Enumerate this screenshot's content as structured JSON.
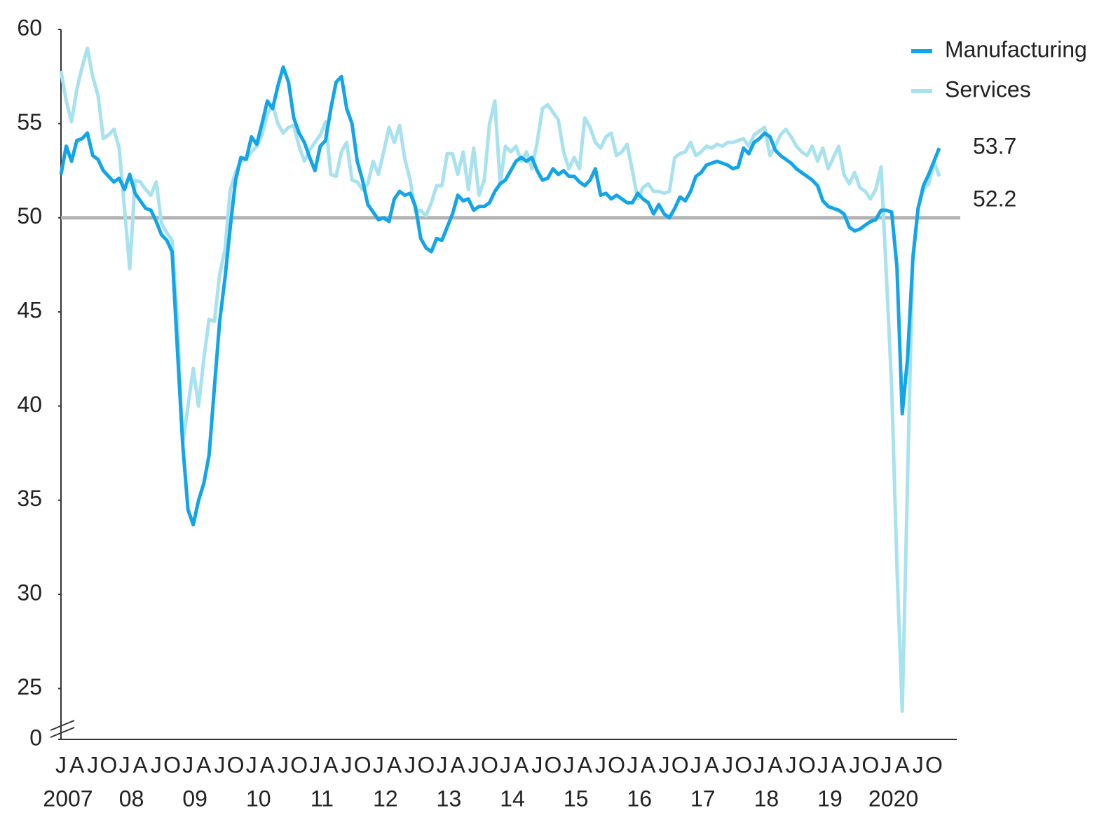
{
  "chart_data": {
    "type": "line",
    "x": [
      "2007-01",
      "2007-02",
      "2007-03",
      "2007-04",
      "2007-05",
      "2007-06",
      "2007-07",
      "2007-08",
      "2007-09",
      "2007-10",
      "2007-11",
      "2007-12",
      "2008-01",
      "2008-02",
      "2008-03",
      "2008-04",
      "2008-05",
      "2008-06",
      "2008-07",
      "2008-08",
      "2008-09",
      "2008-10",
      "2008-11",
      "2008-12",
      "2009-01",
      "2009-02",
      "2009-03",
      "2009-04",
      "2009-05",
      "2009-06",
      "2009-07",
      "2009-08",
      "2009-09",
      "2009-10",
      "2009-11",
      "2009-12",
      "2010-01",
      "2010-02",
      "2010-03",
      "2010-04",
      "2010-05",
      "2010-06",
      "2010-07",
      "2010-08",
      "2010-09",
      "2010-10",
      "2010-11",
      "2010-12",
      "2011-01",
      "2011-02",
      "2011-03",
      "2011-04",
      "2011-05",
      "2011-06",
      "2011-07",
      "2011-08",
      "2011-09",
      "2011-10",
      "2011-11",
      "2011-12",
      "2012-01",
      "2012-02",
      "2012-03",
      "2012-04",
      "2012-05",
      "2012-06",
      "2012-07",
      "2012-08",
      "2012-09",
      "2012-10",
      "2012-11",
      "2012-12",
      "2013-01",
      "2013-02",
      "2013-03",
      "2013-04",
      "2013-05",
      "2013-06",
      "2013-07",
      "2013-08",
      "2013-09",
      "2013-10",
      "2013-11",
      "2013-12",
      "2014-01",
      "2014-02",
      "2014-03",
      "2014-04",
      "2014-05",
      "2014-06",
      "2014-07",
      "2014-08",
      "2014-09",
      "2014-10",
      "2014-11",
      "2014-12",
      "2015-01",
      "2015-02",
      "2015-03",
      "2015-04",
      "2015-05",
      "2015-06",
      "2015-07",
      "2015-08",
      "2015-09",
      "2015-10",
      "2015-11",
      "2015-12",
      "2016-01",
      "2016-02",
      "2016-03",
      "2016-04",
      "2016-05",
      "2016-06",
      "2016-07",
      "2016-08",
      "2016-09",
      "2016-10",
      "2016-11",
      "2016-12",
      "2017-01",
      "2017-02",
      "2017-03",
      "2017-04",
      "2017-05",
      "2017-06",
      "2017-07",
      "2017-08",
      "2017-09",
      "2017-10",
      "2017-11",
      "2017-12",
      "2018-01",
      "2018-02",
      "2018-03",
      "2018-04",
      "2018-05",
      "2018-06",
      "2018-07",
      "2018-08",
      "2018-09",
      "2018-10",
      "2018-11",
      "2018-12",
      "2019-01",
      "2019-02",
      "2019-03",
      "2019-04",
      "2019-05",
      "2019-06",
      "2019-07",
      "2019-08",
      "2019-09",
      "2019-10",
      "2019-11",
      "2019-12",
      "2020-01",
      "2020-02",
      "2020-03",
      "2020-04",
      "2020-05",
      "2020-06",
      "2020-07",
      "2020-08",
      "2020-09",
      "2020-10",
      "2020-11"
    ],
    "series": [
      {
        "name": "Manufacturing",
        "color": "#12a5e8",
        "values": [
          52.3,
          53.8,
          53.0,
          54.1,
          54.2,
          54.5,
          53.3,
          53.1,
          52.5,
          52.2,
          51.9,
          52.1,
          51.5,
          52.3,
          51.3,
          50.9,
          50.5,
          50.4,
          49.8,
          49.1,
          48.8,
          48.2,
          43.0,
          38.0,
          34.5,
          33.7,
          35.0,
          35.9,
          37.4,
          41.0,
          44.5,
          46.8,
          49.5,
          52.0,
          53.2,
          53.1,
          54.3,
          53.9,
          55.0,
          56.2,
          55.8,
          57.0,
          58.0,
          57.2,
          55.3,
          54.5,
          54.0,
          53.2,
          52.5,
          53.8,
          54.1,
          55.8,
          57.2,
          57.5,
          55.8,
          55.0,
          53.0,
          52.0,
          50.7,
          50.3,
          49.9,
          50.0,
          49.8,
          51.0,
          51.4,
          51.2,
          51.3,
          50.6,
          48.9,
          48.4,
          48.2,
          48.9,
          48.8,
          49.5,
          50.2,
          51.2,
          50.9,
          51.0,
          50.4,
          50.6,
          50.6,
          50.8,
          51.4,
          51.8,
          52.0,
          52.5,
          53.0,
          53.2,
          53.0,
          53.2,
          52.5,
          52.0,
          52.1,
          52.6,
          52.3,
          52.5,
          52.2,
          52.2,
          51.9,
          51.7,
          52.0,
          52.6,
          51.2,
          51.3,
          51.0,
          51.2,
          51.0,
          50.8,
          50.8,
          51.3,
          51.0,
          50.8,
          50.2,
          50.7,
          50.2,
          50.0,
          50.5,
          51.1,
          50.9,
          51.4,
          52.2,
          52.4,
          52.8,
          52.9,
          53.0,
          52.9,
          52.8,
          52.6,
          52.7,
          53.7,
          53.4,
          54.0,
          54.2,
          54.5,
          54.3,
          53.6,
          53.3,
          53.1,
          52.9,
          52.6,
          52.4,
          52.2,
          52.0,
          51.7,
          50.9,
          50.6,
          50.5,
          50.4,
          50.2,
          49.5,
          49.3,
          49.4,
          49.6,
          49.8,
          49.9,
          50.4,
          50.4,
          50.3,
          47.4,
          39.6,
          42.5,
          47.8,
          50.5,
          51.7,
          52.3,
          53.0,
          53.7
        ]
      },
      {
        "name": "Services",
        "color": "#a8e2ee",
        "values": [
          57.8,
          56.2,
          55.1,
          56.8,
          58.0,
          59.0,
          57.5,
          56.5,
          54.2,
          54.4,
          54.7,
          53.7,
          50.5,
          47.3,
          52.0,
          51.9,
          51.5,
          51.2,
          51.9,
          49.7,
          49.2,
          48.8,
          44.5,
          38.0,
          40.0,
          42.0,
          40.0,
          42.5,
          44.6,
          44.5,
          47.0,
          48.3,
          51.5,
          52.4,
          53.0,
          53.1,
          53.5,
          53.8,
          54.4,
          55.5,
          56.0,
          55.0,
          54.5,
          54.8,
          54.9,
          53.8,
          53.0,
          53.6,
          54.0,
          54.4,
          55.1,
          52.3,
          52.2,
          53.5,
          54.0,
          52.0,
          51.9,
          51.5,
          51.8,
          53.0,
          52.3,
          53.5,
          54.8,
          54.0,
          54.9,
          53.1,
          52.0,
          50.3,
          50.4,
          50.1,
          50.8,
          51.7,
          51.7,
          53.4,
          53.4,
          52.3,
          53.5,
          51.5,
          53.7,
          51.2,
          52.0,
          55.0,
          56.2,
          51.8,
          53.8,
          53.5,
          53.8,
          53.0,
          53.5,
          52.6,
          54.0,
          55.8,
          56.0,
          55.6,
          55.2,
          53.5,
          52.6,
          53.2,
          52.6,
          55.3,
          54.8,
          54.0,
          53.7,
          54.3,
          54.5,
          53.3,
          53.5,
          53.9,
          52.5,
          51.0,
          51.6,
          51.8,
          51.4,
          51.4,
          51.3,
          51.4,
          53.2,
          53.4,
          53.5,
          54.0,
          53.3,
          53.5,
          53.8,
          53.7,
          53.9,
          53.8,
          54.0,
          54.0,
          54.1,
          54.2,
          53.8,
          54.4,
          54.6,
          54.8,
          53.3,
          53.8,
          54.4,
          54.7,
          54.3,
          53.8,
          53.5,
          53.3,
          53.8,
          53.0,
          53.7,
          52.6,
          53.2,
          53.8,
          52.3,
          51.8,
          52.4,
          51.6,
          51.4,
          51.0,
          51.5,
          52.7,
          47.0,
          41.0,
          31.5,
          23.8,
          36.0,
          48.0,
          50.5,
          51.5,
          51.8,
          53.0,
          52.2
        ]
      }
    ],
    "ylim": [
      0,
      60
    ],
    "axis_break": [
      0,
      22.3
    ],
    "yticks": [
      0,
      25,
      30,
      35,
      40,
      45,
      50,
      55,
      60
    ],
    "hline": 50,
    "xticks": [
      {
        "value": "2007-01",
        "label": "J"
      },
      {
        "value": "2007-04",
        "label": "A"
      },
      {
        "value": "2007-07",
        "label": "J"
      },
      {
        "value": "2007-10",
        "label": "O"
      },
      {
        "value": "2008-01",
        "label": "J"
      },
      {
        "value": "2008-04",
        "label": "A"
      },
      {
        "value": "2008-07",
        "label": "J"
      },
      {
        "value": "2008-10",
        "label": "O"
      },
      {
        "value": "2009-01",
        "label": "J"
      },
      {
        "value": "2009-04",
        "label": "A"
      },
      {
        "value": "2009-07",
        "label": "J"
      },
      {
        "value": "2009-10",
        "label": "O"
      },
      {
        "value": "2010-01",
        "label": "J"
      },
      {
        "value": "2010-04",
        "label": "A"
      },
      {
        "value": "2010-07",
        "label": "J"
      },
      {
        "value": "2010-10",
        "label": "O"
      },
      {
        "value": "2011-01",
        "label": "J"
      },
      {
        "value": "2011-04",
        "label": "A"
      },
      {
        "value": "2011-07",
        "label": "J"
      },
      {
        "value": "2011-10",
        "label": "O"
      },
      {
        "value": "2012-01",
        "label": "J"
      },
      {
        "value": "2012-04",
        "label": "A"
      },
      {
        "value": "2012-07",
        "label": "J"
      },
      {
        "value": "2012-10",
        "label": "O"
      },
      {
        "value": "2013-01",
        "label": "J"
      },
      {
        "value": "2013-04",
        "label": "A"
      },
      {
        "value": "2013-07",
        "label": "J"
      },
      {
        "value": "2013-10",
        "label": "O"
      },
      {
        "value": "2014-01",
        "label": "J"
      },
      {
        "value": "2014-04",
        "label": "A"
      },
      {
        "value": "2014-07",
        "label": "J"
      },
      {
        "value": "2014-10",
        "label": "O"
      },
      {
        "value": "2015-01",
        "label": "J"
      },
      {
        "value": "2015-04",
        "label": "A"
      },
      {
        "value": "2015-07",
        "label": "J"
      },
      {
        "value": "2015-10",
        "label": "O"
      },
      {
        "value": "2016-01",
        "label": "J"
      },
      {
        "value": "2016-04",
        "label": "A"
      },
      {
        "value": "2016-07",
        "label": "J"
      },
      {
        "value": "2016-10",
        "label": "O"
      },
      {
        "value": "2017-01",
        "label": "J"
      },
      {
        "value": "2017-04",
        "label": "A"
      },
      {
        "value": "2017-07",
        "label": "J"
      },
      {
        "value": "2017-10",
        "label": "O"
      },
      {
        "value": "2018-01",
        "label": "J"
      },
      {
        "value": "2018-04",
        "label": "A"
      },
      {
        "value": "2018-07",
        "label": "J"
      },
      {
        "value": "2018-10",
        "label": "O"
      },
      {
        "value": "2019-01",
        "label": "J"
      },
      {
        "value": "2019-04",
        "label": "A"
      },
      {
        "value": "2019-07",
        "label": "J"
      },
      {
        "value": "2019-10",
        "label": "O"
      },
      {
        "value": "2020-01",
        "label": "J"
      },
      {
        "value": "2020-04",
        "label": "A"
      },
      {
        "value": "2020-07",
        "label": "J"
      },
      {
        "value": "2020-10",
        "label": "O"
      }
    ],
    "year_ticks": [
      {
        "value": "2007-01",
        "label": "2007"
      },
      {
        "value": "2008-01",
        "label": "08"
      },
      {
        "value": "2009-01",
        "label": "09"
      },
      {
        "value": "2010-01",
        "label": "10"
      },
      {
        "value": "2011-01",
        "label": "11"
      },
      {
        "value": "2012-01",
        "label": "12"
      },
      {
        "value": "2013-01",
        "label": "13"
      },
      {
        "value": "2014-01",
        "label": "14"
      },
      {
        "value": "2015-01",
        "label": "15"
      },
      {
        "value": "2016-01",
        "label": "16"
      },
      {
        "value": "2017-01",
        "label": "17"
      },
      {
        "value": "2018-01",
        "label": "18"
      },
      {
        "value": "2019-01",
        "label": "19"
      },
      {
        "value": "2020-01",
        "label": "2020"
      }
    ],
    "annotations": [
      "53.7",
      "52.2"
    ],
    "legend": "top-right"
  }
}
